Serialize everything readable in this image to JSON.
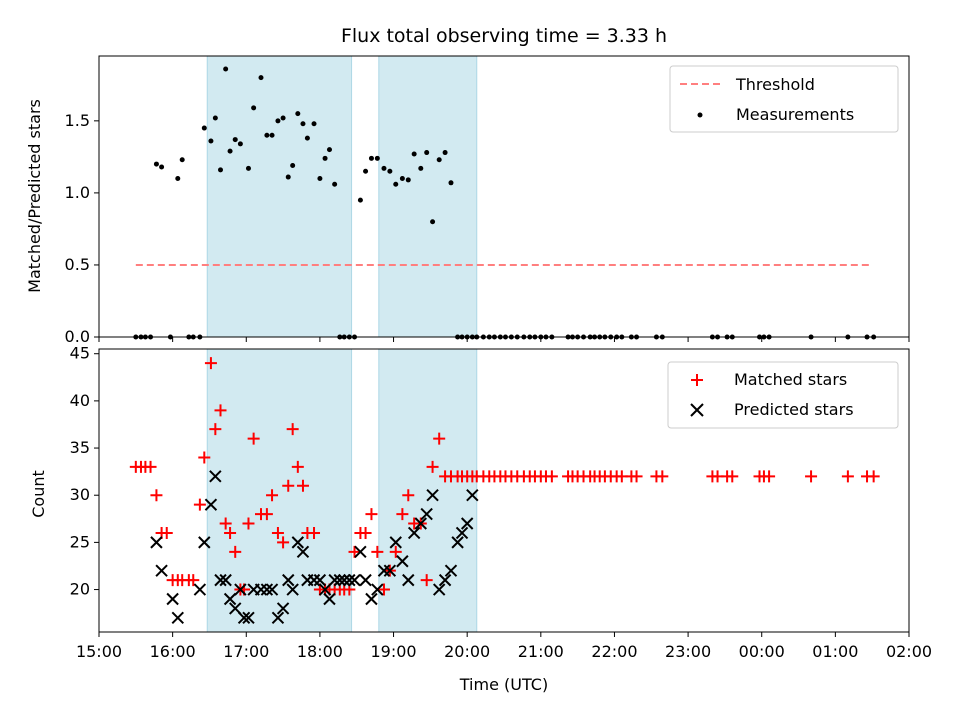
{
  "chart_data": [
    {
      "type": "scatter",
      "panel": "top",
      "title": "Flux total observing time = 3.33 h",
      "ylabel": "Matched/Predicted stars",
      "xlabel": "",
      "ylim": [
        0,
        1.95
      ],
      "yticks": [
        0.0,
        0.5,
        1.0,
        1.5
      ],
      "ytick_labels": [
        "0.0",
        "0.5",
        "1.0",
        "1.5"
      ],
      "shaded_intervals": [
        [
          16.47,
          18.43
        ],
        [
          18.8,
          20.13
        ]
      ],
      "shade_color": "#add8e6",
      "series": [
        {
          "name": "Threshold",
          "kind": "dashed-line",
          "color": "#ff7f7f",
          "x": [
            15.5,
            25.5
          ],
          "y": [
            0.5,
            0.5
          ]
        },
        {
          "name": "Measurements",
          "kind": "dots",
          "color": "#000000",
          "x": [
            15.5,
            15.57,
            15.63,
            15.7,
            15.78,
            15.85,
            15.97,
            16.07,
            16.13,
            16.22,
            16.28,
            16.37,
            16.43,
            16.52,
            16.58,
            16.65,
            16.72,
            16.78,
            16.85,
            16.92,
            17.03,
            17.1,
            17.2,
            17.28,
            17.35,
            17.43,
            17.5,
            17.57,
            17.63,
            17.7,
            17.77,
            17.83,
            17.92,
            18.0,
            18.07,
            18.13,
            18.2,
            18.27,
            18.33,
            18.4,
            18.47,
            18.55,
            18.62,
            18.7,
            18.78,
            18.87,
            18.95,
            19.03,
            19.12,
            19.2,
            19.28,
            19.37,
            19.45,
            19.53,
            19.62,
            19.7,
            19.78,
            19.87,
            19.93,
            20.0,
            20.07,
            20.13,
            20.22,
            20.3,
            20.37,
            20.45,
            20.52,
            20.6,
            20.68,
            20.77,
            20.85,
            20.92,
            21.0,
            21.07,
            21.15,
            21.37,
            21.43,
            21.5,
            21.58,
            21.67,
            21.73,
            21.8,
            21.87,
            21.95,
            22.03,
            22.1,
            22.23,
            22.3,
            22.57,
            22.65,
            23.33,
            23.4,
            23.53,
            23.6,
            23.97,
            24.03,
            24.1,
            24.67,
            25.17,
            25.43,
            25.52
          ],
          "y": [
            0,
            0,
            0,
            0,
            1.2,
            1.18,
            0,
            1.1,
            1.23,
            0,
            0,
            0,
            1.45,
            1.36,
            1.52,
            1.16,
            1.86,
            1.29,
            1.37,
            1.34,
            1.17,
            1.59,
            1.8,
            1.4,
            1.4,
            1.5,
            1.52,
            1.11,
            1.19,
            1.55,
            1.48,
            1.38,
            1.48,
            1.1,
            1.24,
            1.3,
            1.06,
            0,
            0,
            0,
            0,
            0.95,
            1.15,
            1.24,
            1.24,
            1.17,
            1.15,
            1.06,
            1.1,
            1.09,
            1.27,
            1.17,
            1.28,
            0.8,
            1.23,
            1.28,
            1.07,
            0,
            0,
            0,
            0,
            0,
            0,
            0,
            0,
            0,
            0,
            0,
            0,
            0,
            0,
            0,
            0,
            0,
            0,
            0,
            0,
            0,
            0,
            0,
            0,
            0,
            0,
            0,
            0,
            0,
            0,
            0,
            0,
            0,
            0,
            0,
            0,
            0,
            0,
            0,
            0,
            0,
            0,
            0,
            0
          ]
        }
      ],
      "legend": [
        "Threshold",
        "Measurements"
      ],
      "legend_placement": "top-right"
    },
    {
      "type": "scatter",
      "panel": "bottom",
      "title": "",
      "ylabel": "Count",
      "xlabel": "Time (UTC)",
      "ylim": [
        15.5,
        45.5
      ],
      "yticks": [
        20,
        25,
        30,
        35,
        40,
        45
      ],
      "ytick_labels": [
        "20",
        "25",
        "30",
        "35",
        "40",
        "45"
      ],
      "xlim": [
        15.0,
        26.0
      ],
      "xticks": [
        15,
        16,
        17,
        18,
        19,
        20,
        21,
        22,
        23,
        24,
        25,
        26
      ],
      "xtick_labels": [
        "15:00",
        "16:00",
        "17:00",
        "18:00",
        "19:00",
        "20:00",
        "21:00",
        "22:00",
        "23:00",
        "00:00",
        "01:00",
        "02:00"
      ],
      "shaded_intervals": [
        [
          16.47,
          18.43
        ],
        [
          18.8,
          20.13
        ]
      ],
      "shade_color": "#add8e6",
      "series": [
        {
          "name": "Matched stars",
          "marker": "+",
          "color": "#ff0000",
          "x": [
            15.5,
            15.57,
            15.63,
            15.7,
            15.78,
            15.85,
            15.92,
            16.0,
            16.07,
            16.13,
            16.22,
            16.28,
            16.37,
            16.43,
            16.52,
            16.58,
            16.65,
            16.72,
            16.78,
            16.85,
            16.92,
            16.97,
            17.03,
            17.1,
            17.2,
            17.28,
            17.35,
            17.43,
            17.5,
            17.57,
            17.63,
            17.7,
            17.77,
            17.83,
            17.92,
            18.0,
            18.07,
            18.13,
            18.2,
            18.27,
            18.33,
            18.4,
            18.47,
            18.55,
            18.62,
            18.7,
            18.78,
            18.87,
            18.95,
            19.03,
            19.12,
            19.2,
            19.28,
            19.37,
            19.45,
            19.53,
            19.62,
            19.7,
            19.78,
            19.87,
            19.93,
            20.0,
            20.07,
            20.13,
            20.22,
            20.3,
            20.37,
            20.45,
            20.52,
            20.6,
            20.68,
            20.77,
            20.85,
            20.92,
            21.0,
            21.07,
            21.15,
            21.37,
            21.43,
            21.5,
            21.58,
            21.67,
            21.73,
            21.8,
            21.87,
            21.95,
            22.03,
            22.1,
            22.23,
            22.3,
            22.57,
            22.65,
            23.33,
            23.4,
            23.53,
            23.6,
            23.97,
            24.03,
            24.1,
            24.67,
            25.17,
            25.43,
            25.52
          ],
          "y": [
            33,
            33,
            33,
            33,
            30,
            26,
            26,
            21,
            21,
            21,
            21,
            21,
            29,
            34,
            44,
            37,
            39,
            27,
            26,
            24,
            20,
            20,
            27,
            36,
            28,
            28,
            30,
            26,
            25,
            31,
            37,
            33,
            31,
            26,
            26,
            20,
            20,
            20,
            20,
            20,
            20,
            20,
            24,
            26,
            26,
            28,
            24,
            20,
            22,
            24,
            28,
            30,
            27,
            27,
            21,
            33,
            36,
            32,
            32,
            32,
            32,
            32,
            32,
            32,
            32,
            32,
            32,
            32,
            32,
            32,
            32,
            32,
            32,
            32,
            32,
            32,
            32,
            32,
            32,
            32,
            32,
            32,
            32,
            32,
            32,
            32,
            32,
            32,
            32,
            32,
            32,
            32,
            32,
            32,
            32,
            32,
            32,
            32,
            32,
            32,
            32,
            32,
            32
          ]
        },
        {
          "name": "Predicted stars",
          "marker": "x",
          "color": "#000000",
          "x": [
            15.78,
            15.85,
            16.0,
            16.07,
            16.37,
            16.43,
            16.52,
            16.58,
            16.65,
            16.72,
            16.78,
            16.85,
            16.92,
            16.97,
            17.03,
            17.1,
            17.2,
            17.28,
            17.35,
            17.43,
            17.5,
            17.57,
            17.63,
            17.7,
            17.77,
            17.83,
            17.92,
            18.0,
            18.07,
            18.13,
            18.2,
            18.27,
            18.33,
            18.4,
            18.47,
            18.55,
            18.62,
            18.7,
            18.78,
            18.87,
            18.95,
            19.03,
            19.12,
            19.2,
            19.28,
            19.37,
            19.45,
            19.53,
            19.62,
            19.7,
            19.78,
            19.87,
            19.93,
            20.0,
            20.07
          ],
          "y": [
            25,
            22,
            19,
            17,
            20,
            25,
            29,
            32,
            21,
            21,
            19,
            18,
            20,
            17,
            17,
            20,
            20,
            20,
            20,
            17,
            18,
            21,
            20,
            25,
            24,
            21,
            21,
            21,
            20,
            19,
            21,
            21,
            21,
            21,
            21,
            24,
            21,
            19,
            20,
            22,
            22,
            25,
            23,
            21,
            26,
            27,
            28,
            30,
            20,
            21,
            22,
            25,
            26,
            27,
            30
          ]
        }
      ],
      "legend": [
        "Matched stars",
        "Predicted stars"
      ],
      "legend_placement": "top-right"
    }
  ]
}
